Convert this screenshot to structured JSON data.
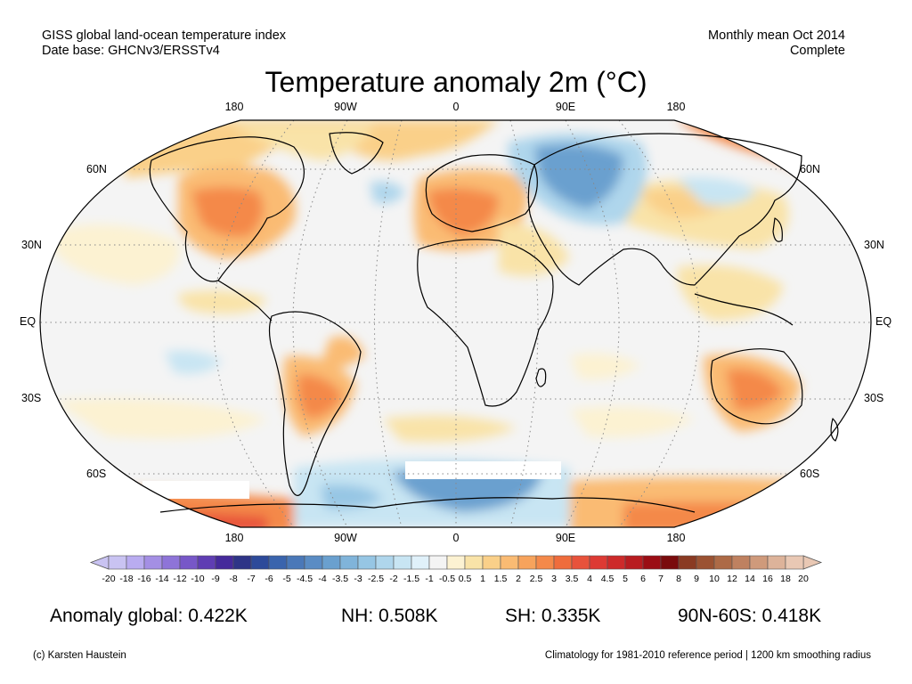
{
  "header": {
    "left_line1": "GISS global land-ocean temperature index",
    "left_line2": "Date base: GHCNv3/ERSSTv4",
    "right_line1": "Monthly mean Oct 2014",
    "right_line2": "Complete"
  },
  "title": "Temperature anomaly 2m (°C)",
  "axes": {
    "lon_labels": [
      "180",
      "90W",
      "0",
      "90E",
      "180"
    ],
    "lat_labels": [
      "60N",
      "30N",
      "EQ",
      "30S",
      "60S"
    ]
  },
  "colorbar": {
    "tick_labels": [
      "-20",
      "-18",
      "-16",
      "-14",
      "-12",
      "-10",
      "-9",
      "-8",
      "-7",
      "-6",
      "-5",
      "-4.5",
      "-4",
      "-3.5",
      "-3",
      "-2.5",
      "-2",
      "-1.5",
      "-1",
      "-0.5",
      "0.5",
      "1",
      "1.5",
      "2",
      "2.5",
      "3",
      "3.5",
      "4",
      "4.5",
      "5",
      "6",
      "7",
      "8",
      "9",
      "10",
      "12",
      "14",
      "16",
      "18",
      "20"
    ],
    "colors": [
      "#c9c3f2",
      "#b9acf0",
      "#a48fe4",
      "#8e74d8",
      "#7757c8",
      "#5f3db3",
      "#452a9b",
      "#2e3487",
      "#2d4a9a",
      "#3a64ad",
      "#4a78b8",
      "#5a8cc4",
      "#6aa0cf",
      "#80b4da",
      "#96c6e4",
      "#afd6ec",
      "#c8e5f3",
      "#e0f1fa",
      "#f4f4f4",
      "#fcf2d2",
      "#f9e3a8",
      "#fad089",
      "#fabb73",
      "#f7a35c",
      "#f4894a",
      "#ef6c3c",
      "#e8523b",
      "#dd3a34",
      "#cd2a2a",
      "#b81c20",
      "#9b0d14",
      "#7a0b0d",
      "#8a3a22",
      "#9b5232",
      "#ad6a46",
      "#bf8160",
      "#cf9a7b",
      "#ddb39a",
      "#e9c8b4"
    ]
  },
  "stats": {
    "global": "Anomaly global: 0.422K",
    "nh": "NH: 0.508K",
    "sh": "SH: 0.335K",
    "polar": "90N-60S: 0.418K"
  },
  "footer": {
    "left": "(c) Karsten Haustein",
    "right": "Climatology for 1981-2010 reference period | 1200 km smoothing radius"
  },
  "colors": {
    "neutral": "#f4f4f4",
    "warm1": "#fcf2d2",
    "warm2": "#f9e3a8",
    "warm3": "#fabb73",
    "warm4": "#f4894a",
    "warm5": "#e8523b",
    "cool1": "#e0f1fa",
    "cool2": "#afd6ec",
    "cool3": "#6aa0cf",
    "outline": "#000000"
  }
}
